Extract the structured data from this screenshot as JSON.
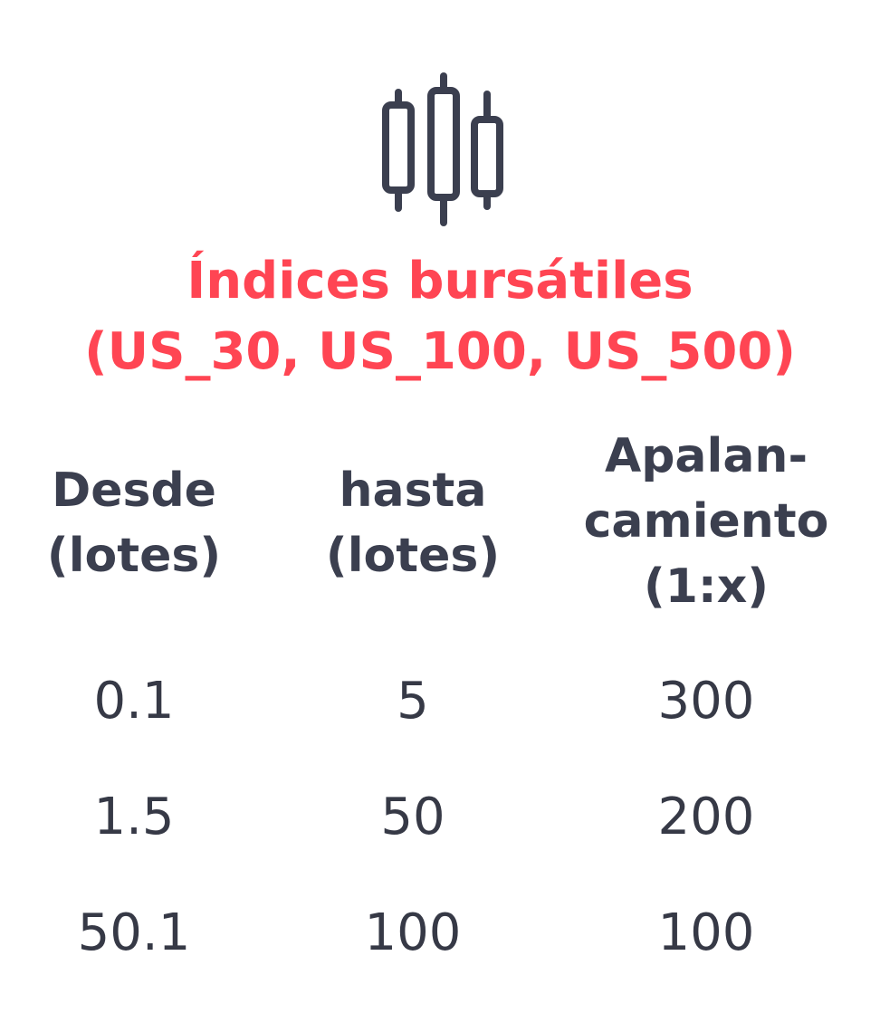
{
  "icon": "candlestick-chart-icon",
  "colors": {
    "accent": "#ff4553",
    "text": "#3b3f4f",
    "icon": "#3b3f4f",
    "background": "#ffffff"
  },
  "title": {
    "line1": "Índices bursátiles",
    "line2": "(US_30, US_100, US_500)"
  },
  "table": {
    "headers": [
      {
        "line1": "Desde",
        "line2": "(lotes)"
      },
      {
        "line1": "hasta",
        "line2": "(lotes)"
      },
      {
        "line1": "Apalan-",
        "line2": "camiento",
        "line3": "(1:x)"
      }
    ],
    "rows": [
      [
        "0.1",
        "5",
        "300"
      ],
      [
        "1.5",
        "50",
        "200"
      ],
      [
        "50.1",
        "100",
        "100"
      ]
    ]
  }
}
